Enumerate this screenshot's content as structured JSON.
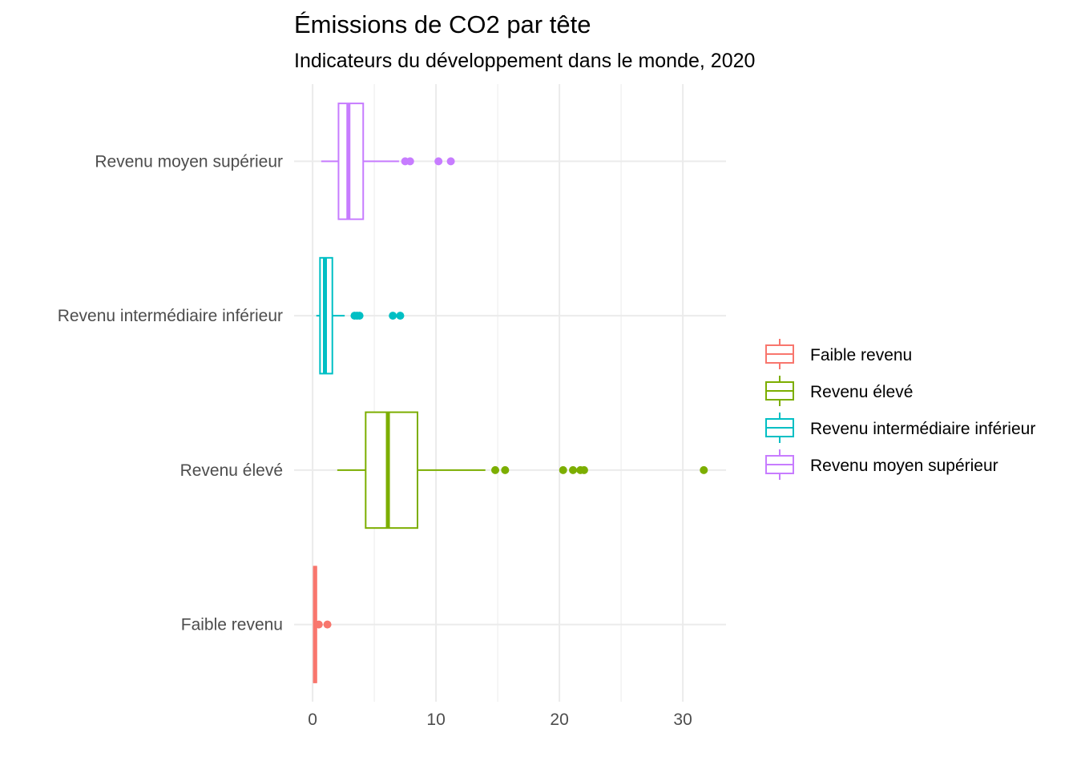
{
  "chart_data": {
    "type": "boxplot",
    "title": "Émissions de CO2 par tête",
    "subtitle": "Indicateurs du développement dans le monde, 2020",
    "xlabel": "",
    "ylabel": "",
    "xlim": [
      -1.5,
      33.5
    ],
    "x_ticks": [
      0,
      10,
      20,
      30
    ],
    "x_tick_labels": [
      "0",
      "10",
      "20",
      "30"
    ],
    "grid": true,
    "legend_position": "right",
    "orientation": "horizontal",
    "categories": [
      "Revenu moyen supérieur",
      "Revenu intermédiaire inférieur",
      "Revenu élevé",
      "Faible revenu"
    ],
    "series": [
      {
        "name": "Faible revenu",
        "color": "#F8766D",
        "whisker_low": 0.03,
        "q1": 0.1,
        "median": 0.2,
        "q3": 0.3,
        "whisker_high": 0.4,
        "outliers": [
          0.5,
          1.2
        ]
      },
      {
        "name": "Revenu élevé",
        "color": "#7CAE00",
        "whisker_low": 2.0,
        "q1": 4.3,
        "median": 6.1,
        "q3": 8.5,
        "whisker_high": 14.0,
        "outliers": [
          14.8,
          15.6,
          20.3,
          21.1,
          21.7,
          22.0,
          31.7
        ]
      },
      {
        "name": "Revenu intermédiaire inférieur",
        "color": "#00BFC4",
        "whisker_low": 0.3,
        "q1": 0.6,
        "median": 1.0,
        "q3": 1.6,
        "whisker_high": 2.6,
        "outliers": [
          3.4,
          3.6,
          3.8,
          6.5,
          7.1
        ]
      },
      {
        "name": "Revenu moyen supérieur",
        "color": "#C77CFF",
        "whisker_low": 0.7,
        "q1": 2.1,
        "median": 2.9,
        "q3": 4.1,
        "whisker_high": 7.0,
        "outliers": [
          7.5,
          7.9,
          10.2,
          11.2
        ]
      }
    ]
  }
}
